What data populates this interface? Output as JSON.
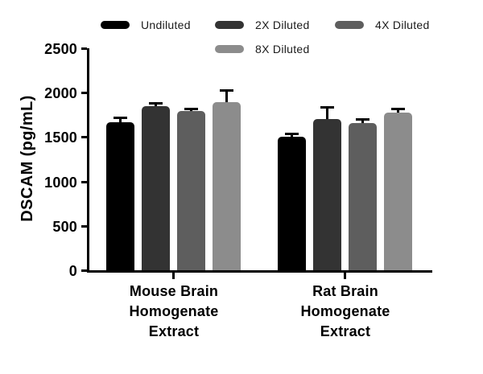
{
  "chart_data": {
    "type": "bar",
    "title": "",
    "xlabel": "",
    "ylabel": "DSCAM (pg/mL)",
    "ylim": [
      0,
      2500
    ],
    "yticks": [
      0,
      500,
      1000,
      1500,
      2000,
      2500
    ],
    "grid": false,
    "background": "#ffffff",
    "axis_color": "#000000",
    "error_bars": "upper",
    "error_color": "#000000",
    "legend_position": "top",
    "categories": [
      {
        "id": "mouse-brain",
        "lines": [
          "Mouse Brain",
          "Homogenate",
          "Extract"
        ]
      },
      {
        "id": "rat-brain",
        "lines": [
          "Rat Brain",
          "Homogenate",
          "Extract"
        ]
      }
    ],
    "series": [
      {
        "name": "Undiluted",
        "color": "#000000",
        "values": [
          1670,
          1500
        ],
        "errors_plus": [
          55,
          40
        ]
      },
      {
        "name": "2X Diluted",
        "color": "#333333",
        "values": [
          1850,
          1705
        ],
        "errors_plus": [
          35,
          130
        ]
      },
      {
        "name": "4X Diluted",
        "color": "#5e5e5e",
        "values": [
          1790,
          1655
        ],
        "errors_plus": [
          30,
          50
        ]
      },
      {
        "name": "8X Diluted",
        "color": "#8c8c8c",
        "values": [
          1890,
          1775
        ],
        "errors_plus": [
          135,
          50
        ]
      }
    ]
  }
}
